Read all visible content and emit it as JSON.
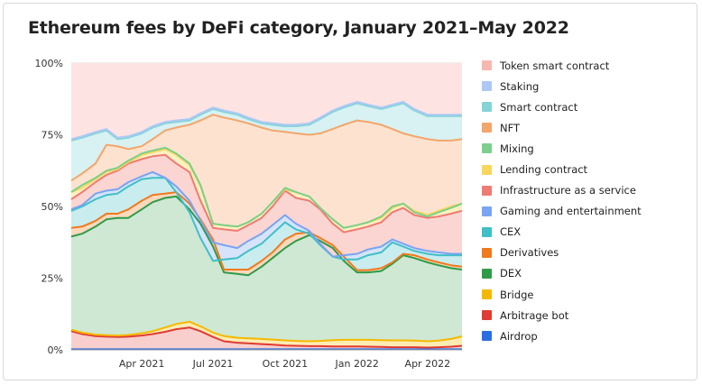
{
  "chart_data": {
    "type": "area",
    "stacked": true,
    "title": "Ethereum fees by DeFi category, January 2021–May 2022",
    "x": [
      "2021-01-01",
      "2021-01-15",
      "2021-02-01",
      "2021-02-15",
      "2021-03-01",
      "2021-03-15",
      "2021-04-01",
      "2021-04-15",
      "2021-05-01",
      "2021-05-15",
      "2021-06-01",
      "2021-06-15",
      "2021-07-01",
      "2021-07-15",
      "2021-08-01",
      "2021-08-15",
      "2021-09-01",
      "2021-09-15",
      "2021-10-01",
      "2021-10-15",
      "2021-11-01",
      "2021-11-15",
      "2021-12-01",
      "2021-12-15",
      "2022-01-01",
      "2022-01-15",
      "2022-02-01",
      "2022-02-15",
      "2022-03-01",
      "2022-03-15",
      "2022-04-01",
      "2022-04-15",
      "2022-05-01",
      "2022-05-15"
    ],
    "x_ticks": [
      "Apr 2021",
      "Jul 2021",
      "Oct 2021",
      "Jan 2022",
      "Apr 2022"
    ],
    "y_ticks": [
      "0%",
      "25%",
      "50%",
      "75%",
      "100%"
    ],
    "ylim": [
      0,
      100
    ],
    "y_unit": "%",
    "legend_position": "right",
    "grid": true,
    "series": [
      {
        "name": "Token smart contract",
        "color": "#f7b8b0",
        "fill": "#fde4e2"
      },
      {
        "name": "Staking",
        "color": "#adc8f5",
        "fill": "#e1ebfc"
      },
      {
        "name": "Smart contract",
        "color": "#84d4d8",
        "fill": "#d8f1f2"
      },
      {
        "name": "NFT",
        "color": "#f2a66b",
        "fill": "#fde3cf"
      },
      {
        "name": "Mixing",
        "color": "#7ccf8c",
        "fill": "#d9f2de"
      },
      {
        "name": "Lending contract",
        "color": "#f9d65c",
        "fill": "#fdf0c2"
      },
      {
        "name": "Infrastructure as a service",
        "color": "#ef7b72",
        "fill": "#fbd5d2"
      },
      {
        "name": "Gaming and entertainment",
        "color": "#79a4f2",
        "fill": "#d6e3fb"
      },
      {
        "name": "CEX",
        "color": "#3fc0c6",
        "fill": "#c9ecee"
      },
      {
        "name": "Derivatives",
        "color": "#f07a1e",
        "fill": "#fcd8bd"
      },
      {
        "name": "DEX",
        "color": "#2e9b48",
        "fill": "#cfe8d3"
      },
      {
        "name": "Bridge",
        "color": "#f5b800",
        "fill": "#fcecb3"
      },
      {
        "name": "Arbitrage bot",
        "color": "#e03b34",
        "fill": "#f8cfcd"
      },
      {
        "name": "Airdrop",
        "color": "#2b6de2",
        "fill": "#cfdcf7"
      }
    ],
    "cumulative_tops": {
      "Airdrop": [
        0.2,
        0.2,
        0.2,
        0.2,
        0.2,
        0.2,
        0.2,
        0.2,
        0.2,
        0.2,
        0.2,
        0.2,
        0.2,
        0.2,
        0.2,
        0.2,
        0.2,
        0.2,
        0.2,
        0.2,
        0.2,
        0.2,
        0.2,
        0.2,
        0.2,
        0.2,
        0.2,
        0.2,
        0.2,
        0.2,
        0.2,
        0.2,
        0.2,
        0.2
      ],
      "Arbitrage bot": [
        6.5,
        5.5,
        4.8,
        4.6,
        4.5,
        4.6,
        5.0,
        5.5,
        6.3,
        7.2,
        7.8,
        6.5,
        4.5,
        3.0,
        2.5,
        2.3,
        2.0,
        1.8,
        1.5,
        1.4,
        1.3,
        1.3,
        1.2,
        1.2,
        1.2,
        1.1,
        1.0,
        0.9,
        0.9,
        0.9,
        0.8,
        0.9,
        1.1,
        1.4
      ],
      "Bridge": [
        7.0,
        6.0,
        5.3,
        5.1,
        5.0,
        5.2,
        5.8,
        6.5,
        7.8,
        9.0,
        9.8,
        8.2,
        6.0,
        4.8,
        4.2,
        4.0,
        3.8,
        3.6,
        3.3,
        3.1,
        3.0,
        3.1,
        3.4,
        3.5,
        3.5,
        3.5,
        3.4,
        3.3,
        3.3,
        3.2,
        3.0,
        3.2,
        3.8,
        4.7
      ],
      "DEX": [
        39.5,
        40.5,
        43.0,
        45.5,
        46.0,
        46.0,
        49.0,
        51.5,
        53.0,
        53.5,
        49.0,
        44.0,
        36.0,
        27.0,
        26.5,
        26.0,
        29.0,
        32.0,
        35.5,
        38.0,
        40.0,
        38.0,
        35.5,
        31.0,
        27.0,
        27.0,
        27.5,
        30.0,
        33.0,
        32.0,
        30.5,
        29.5,
        28.5,
        28.0
      ],
      "Derivatives": [
        42.5,
        43.0,
        45.0,
        47.5,
        47.5,
        49.0,
        52.0,
        54.0,
        54.5,
        55.0,
        51.0,
        45.5,
        38.5,
        28.0,
        28.0,
        28.0,
        31.0,
        34.0,
        38.5,
        40.5,
        41.0,
        39.0,
        36.5,
        32.5,
        27.8,
        27.8,
        28.5,
        30.5,
        33.5,
        33.0,
        31.5,
        30.5,
        29.5,
        29.0
      ],
      "CEX": [
        48.5,
        50.0,
        52.5,
        54.0,
        54.5,
        57.0,
        59.5,
        60.0,
        60.0,
        55.0,
        48.0,
        39.0,
        31.0,
        31.5,
        32.0,
        34.5,
        37.0,
        40.5,
        44.5,
        42.0,
        40.5,
        36.5,
        32.5,
        31.5,
        31.5,
        33.0,
        34.0,
        37.5,
        36.0,
        34.5,
        33.5,
        33.0,
        33.0,
        33.0
      ],
      "Gaming and entertainment": [
        49.0,
        50.5,
        54.5,
        55.5,
        56.0,
        58.5,
        60.5,
        62.0,
        60.0,
        57.0,
        52.0,
        45.0,
        37.5,
        36.5,
        35.5,
        38.0,
        40.5,
        43.5,
        47.0,
        44.0,
        41.5,
        37.0,
        32.5,
        33.0,
        33.5,
        35.0,
        36.0,
        38.5,
        37.0,
        35.5,
        34.5,
        34.0,
        33.5,
        33.5
      ],
      "Infrastructure as a service": [
        52.5,
        55.0,
        58.5,
        61.0,
        62.5,
        65.0,
        66.5,
        67.5,
        68.0,
        65.0,
        62.0,
        52.0,
        42.5,
        42.0,
        41.5,
        43.5,
        46.0,
        50.0,
        55.5,
        53.0,
        52.0,
        49.0,
        44.0,
        41.0,
        42.0,
        43.0,
        44.5,
        48.0,
        49.5,
        47.0,
        46.0,
        46.5,
        47.5,
        48.5
      ],
      "Lending contract": [
        55.0,
        56.5,
        59.5,
        62.0,
        63.0,
        65.5,
        68.0,
        69.0,
        70.0,
        68.0,
        64.5,
        57.0,
        44.0,
        43.5,
        43.0,
        44.5,
        47.5,
        51.5,
        56.0,
        55.0,
        53.5,
        49.5,
        45.5,
        42.5,
        43.5,
        44.5,
        46.0,
        49.5,
        51.0,
        48.5,
        47.0,
        48.5,
        50.0,
        51.0
      ],
      "Mixing": [
        55.0,
        57.5,
        60.0,
        62.5,
        63.5,
        66.0,
        68.5,
        69.5,
        70.5,
        68.5,
        65.0,
        57.5,
        44.0,
        43.5,
        43.0,
        44.5,
        47.5,
        51.5,
        56.5,
        55.0,
        53.5,
        49.5,
        45.5,
        42.5,
        43.5,
        44.5,
        46.5,
        50.0,
        51.0,
        48.0,
        46.5,
        48.0,
        49.5,
        51.0
      ],
      "NFT": [
        59.0,
        61.5,
        65.0,
        71.5,
        71.0,
        70.0,
        71.0,
        73.5,
        76.5,
        77.5,
        78.5,
        80.0,
        82.0,
        81.0,
        80.0,
        79.0,
        77.5,
        76.5,
        76.0,
        75.5,
        75.0,
        75.5,
        77.0,
        78.5,
        80.0,
        79.5,
        78.5,
        77.0,
        75.5,
        74.5,
        73.5,
        73.0,
        73.0,
        73.5
      ],
      "Smart contract": [
        73.0,
        74.0,
        75.5,
        76.5,
        73.5,
        74.0,
        75.5,
        77.5,
        79.0,
        79.5,
        80.0,
        82.0,
        84.0,
        83.0,
        82.0,
        80.5,
        79.0,
        78.5,
        78.0,
        78.0,
        78.5,
        80.5,
        83.0,
        84.5,
        86.0,
        85.0,
        84.0,
        85.0,
        86.0,
        83.5,
        81.5,
        81.5,
        81.5,
        81.5
      ],
      "Staking": [
        73.5,
        74.5,
        76.0,
        77.0,
        74.0,
        74.5,
        76.0,
        78.0,
        79.5,
        80.0,
        80.5,
        82.5,
        84.5,
        83.5,
        82.5,
        81.0,
        79.5,
        79.0,
        78.5,
        78.5,
        79.0,
        81.0,
        83.5,
        85.0,
        86.5,
        85.5,
        84.5,
        85.5,
        86.5,
        84.0,
        82.0,
        82.0,
        82.0,
        82.0
      ],
      "Token smart contract": [
        100,
        100,
        100,
        100,
        100,
        100,
        100,
        100,
        100,
        100,
        100,
        100,
        100,
        100,
        100,
        100,
        100,
        100,
        100,
        100,
        100,
        100,
        100,
        100,
        100,
        100,
        100,
        100,
        100,
        100,
        100,
        100,
        100,
        100
      ]
    }
  }
}
